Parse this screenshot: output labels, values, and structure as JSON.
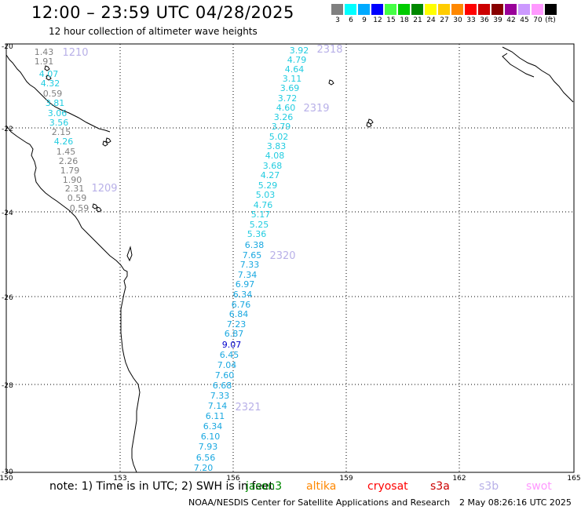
{
  "title": "12:00 – 23:59 UTC 04/28/2025",
  "subtitle": "12 hour collection of altimeter wave heights",
  "colorbar": {
    "unit": "(ft)",
    "bins": [
      {
        "label": "3",
        "color": "#808080"
      },
      {
        "label": "6",
        "color": "#00ffff"
      },
      {
        "label": "9",
        "color": "#00aaff"
      },
      {
        "label": "12",
        "color": "#0000ff"
      },
      {
        "label": "15",
        "color": "#44ff44"
      },
      {
        "label": "18",
        "color": "#00cc00"
      },
      {
        "label": "21",
        "color": "#008800"
      },
      {
        "label": "24",
        "color": "#ffff00"
      },
      {
        "label": "27",
        "color": "#ffcc00"
      },
      {
        "label": "30",
        "color": "#ff8800"
      },
      {
        "label": "33",
        "color": "#ff0000"
      },
      {
        "label": "36",
        "color": "#cc0000"
      },
      {
        "label": "39",
        "color": "#880000"
      },
      {
        "label": "42",
        "color": "#990099"
      },
      {
        "label": "45",
        "color": "#cc99ff"
      },
      {
        "label": "70",
        "color": "#ff99ff"
      },
      {
        "label": "",
        "color": "#000000"
      }
    ]
  },
  "axes": {
    "lat_labels": [
      "-20",
      "-22",
      "-24",
      "-26",
      "-28",
      "-30"
    ],
    "lon_labels": [
      "150",
      "153",
      "156",
      "159",
      "162",
      "165"
    ]
  },
  "tracks": [
    {
      "id": "1210",
      "label_color": "#b8b0e8",
      "points": [
        {
          "v": "1.43",
          "c": "#808080"
        },
        {
          "v": "1.91",
          "c": "#808080"
        },
        {
          "v": "4.07",
          "c": "#22cce0"
        },
        {
          "v": "4.32",
          "c": "#22cce0"
        },
        {
          "v": "0.59",
          "c": "#808080"
        },
        {
          "v": "3.81",
          "c": "#22cce0"
        },
        {
          "v": "3.06",
          "c": "#22cce0"
        },
        {
          "v": "3.56",
          "c": "#22cce0"
        },
        {
          "v": "2.15",
          "c": "#808080"
        },
        {
          "v": "4.26",
          "c": "#22cce0"
        },
        {
          "v": "1.45",
          "c": "#808080"
        },
        {
          "v": "2.26",
          "c": "#808080"
        },
        {
          "v": "1.79",
          "c": "#808080"
        },
        {
          "v": "1.90",
          "c": "#808080"
        },
        {
          "v": "2.31",
          "c": "#808080"
        },
        {
          "v": "0.59",
          "c": "#808080"
        },
        {
          "v": "0.59",
          "c": "#808080"
        }
      ]
    },
    {
      "id": "1209",
      "label_color": "#b8b0e8",
      "points": []
    },
    {
      "id": "2318",
      "label_color": "#b8b0e8",
      "points": [
        {
          "v": "3.92",
          "c": "#22cce0"
        },
        {
          "v": "4.79",
          "c": "#22cce0"
        },
        {
          "v": "4.64",
          "c": "#22cce0"
        },
        {
          "v": "3.11",
          "c": "#22cce0"
        },
        {
          "v": "3.69",
          "c": "#22cce0"
        },
        {
          "v": "3.72",
          "c": "#22cce0"
        },
        {
          "v": "4.60",
          "c": "#22cce0"
        },
        {
          "v": "3.26",
          "c": "#22cce0"
        },
        {
          "v": "3.79",
          "c": "#22cce0"
        }
      ]
    },
    {
      "id": "2319",
      "label_color": "#b8b0e8",
      "points": [
        {
          "v": "5.02",
          "c": "#22cce0"
        },
        {
          "v": "3.83",
          "c": "#22cce0"
        },
        {
          "v": "4.08",
          "c": "#22cce0"
        },
        {
          "v": "3.68",
          "c": "#22cce0"
        },
        {
          "v": "4.27",
          "c": "#22cce0"
        },
        {
          "v": "5.29",
          "c": "#22cce0"
        },
        {
          "v": "5.03",
          "c": "#22cce0"
        },
        {
          "v": "4.76",
          "c": "#22cce0"
        },
        {
          "v": "5.17",
          "c": "#22cce0"
        },
        {
          "v": "5.25",
          "c": "#22cce0"
        },
        {
          "v": "5.36",
          "c": "#22cce0"
        }
      ]
    },
    {
      "id": "2320",
      "label_color": "#b8b0e8",
      "points": [
        {
          "v": "6.38",
          "c": "#1aa8e0"
        },
        {
          "v": "7.65",
          "c": "#1aa8e0"
        },
        {
          "v": "7.33",
          "c": "#1aa8e0"
        },
        {
          "v": "7.34",
          "c": "#1aa8e0"
        },
        {
          "v": "6.97",
          "c": "#1aa8e0"
        },
        {
          "v": "6.34",
          "c": "#1aa8e0"
        },
        {
          "v": "6.76",
          "c": "#1aa8e0"
        },
        {
          "v": "6.84",
          "c": "#1aa8e0"
        },
        {
          "v": "7.23",
          "c": "#1aa8e0"
        },
        {
          "v": "6.87",
          "c": "#1aa8e0"
        },
        {
          "v": "9.07",
          "c": "#0000cc"
        },
        {
          "v": "6.45",
          "c": "#1aa8e0"
        },
        {
          "v": "7.04",
          "c": "#1aa8e0"
        },
        {
          "v": "7.60",
          "c": "#1aa8e0"
        }
      ]
    },
    {
      "id": "2321",
      "label_color": "#b8b0e8",
      "points": [
        {
          "v": "6.68",
          "c": "#1aa8e0"
        },
        {
          "v": "7.33",
          "c": "#1aa8e0"
        },
        {
          "v": "7.14",
          "c": "#1aa8e0"
        },
        {
          "v": "6.11",
          "c": "#1aa8e0"
        },
        {
          "v": "6.34",
          "c": "#1aa8e0"
        },
        {
          "v": "6.10",
          "c": "#1aa8e0"
        },
        {
          "v": "7.93",
          "c": "#1aa8e0"
        },
        {
          "v": "6.56",
          "c": "#1aa8e0"
        },
        {
          "v": "7.20",
          "c": "#1aa8e0"
        }
      ]
    }
  ],
  "footer": {
    "note": "note: 1) Time is in UTC; 2) SWH is in feet",
    "satellites": [
      {
        "name": "jason3",
        "color": "#008800"
      },
      {
        "name": "altika",
        "color": "#ff8800"
      },
      {
        "name": "cryosat",
        "color": "#ff0000"
      },
      {
        "name": "s3a",
        "color": "#cc0000"
      },
      {
        "name": "s3b",
        "color": "#b8b0e8"
      },
      {
        "name": "swot",
        "color": "#ff99ff"
      }
    ],
    "credit": "NOAA/NESDIS Center for Satellite Applications and Research",
    "timestamp": "2 May 08:26:16 UTC 2025"
  }
}
